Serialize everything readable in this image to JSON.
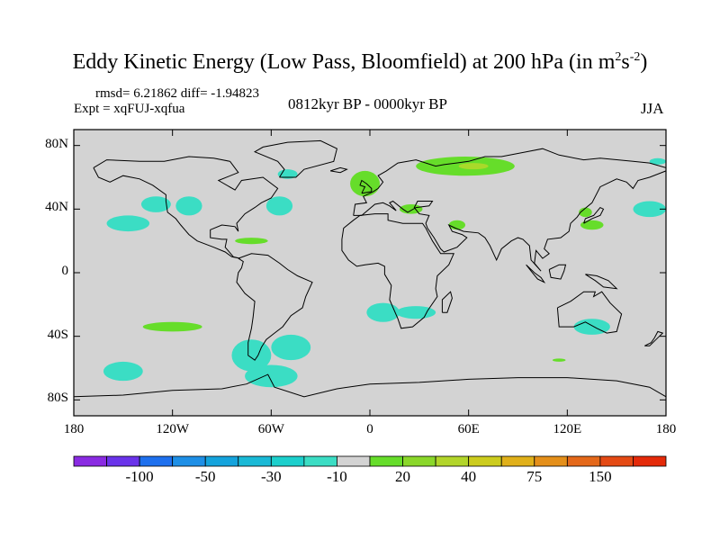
{
  "title": {
    "main": "Eddy Kinetic Energy (Low Pass, Bloomfield) at 200 hPa (in m",
    "sup1": "2",
    "mid": "s",
    "sup2": "-2",
    "end": ")"
  },
  "stats": "rmsd= 6.21862 diff= -1.94823",
  "experiment": "Expt = xqFUJ-xqfua",
  "period": "0812kyr BP - 0000kyr BP",
  "season": "JJA",
  "map": {
    "lon_range": [
      -180,
      180
    ],
    "lat_range": [
      -90,
      90
    ],
    "background_color": "#d3d3d3",
    "y_ticks": [
      {
        "label": "80N",
        "lat": 80
      },
      {
        "label": "40N",
        "lat": 40
      },
      {
        "label": "0",
        "lat": 0
      },
      {
        "label": "40S",
        "lat": -40
      },
      {
        "label": "80S",
        "lat": -80
      }
    ],
    "x_ticks": [
      {
        "label": "180",
        "lon": -180
      },
      {
        "label": "120W",
        "lon": -120
      },
      {
        "label": "60W",
        "lon": -60
      },
      {
        "label": "0",
        "lon": 0
      },
      {
        "label": "60E",
        "lon": 60
      },
      {
        "label": "120E",
        "lon": 120
      },
      {
        "label": "180",
        "lon": 180
      }
    ],
    "anomaly_regions": [
      {
        "name": "north-pacific-east",
        "lon": -147,
        "lat": 31,
        "rlon": 13,
        "rlat": 5,
        "color": "#3bddc4"
      },
      {
        "name": "north-pacific-mid",
        "lon": -130,
        "lat": 43,
        "rlon": 9,
        "rlat": 5,
        "color": "#3bddc4"
      },
      {
        "name": "north-america-west",
        "lon": -110,
        "lat": 42,
        "rlon": 8,
        "rlat": 6,
        "color": "#3bddc4"
      },
      {
        "name": "north-atlantic-west",
        "lon": -55,
        "lat": 42,
        "rlon": 8,
        "rlat": 6,
        "color": "#3bddc4"
      },
      {
        "name": "canada-north",
        "lon": -50,
        "lat": 62,
        "rlon": 6,
        "rlat": 3,
        "color": "#3bddc4"
      },
      {
        "name": "caribbean",
        "lon": -72,
        "lat": 20,
        "rlon": 10,
        "rlat": 2,
        "color": "#66dd2a"
      },
      {
        "name": "europe-west",
        "lon": -3,
        "lat": 56,
        "rlon": 9,
        "rlat": 8,
        "color": "#66dd2a"
      },
      {
        "name": "siberia",
        "lon": 58,
        "lat": 67,
        "rlon": 30,
        "rlat": 6,
        "color": "#66dd2a"
      },
      {
        "name": "siberia-core",
        "lon": 63,
        "lat": 67,
        "rlon": 9,
        "rlat": 2,
        "color": "#a9d92a"
      },
      {
        "name": "mediterranean",
        "lon": 25,
        "lat": 40,
        "rlon": 7,
        "rlat": 3,
        "color": "#66dd2a"
      },
      {
        "name": "middle-east",
        "lon": 53,
        "lat": 30,
        "rlon": 5,
        "rlat": 3,
        "color": "#66dd2a"
      },
      {
        "name": "east-asia",
        "lon": 135,
        "lat": 30,
        "rlon": 7,
        "rlat": 3,
        "color": "#66dd2a"
      },
      {
        "name": "japan",
        "lon": 131,
        "lat": 38,
        "rlon": 4,
        "rlat": 3,
        "color": "#66dd2a"
      },
      {
        "name": "north-pacific-west",
        "lon": 170,
        "lat": 40,
        "rlon": 10,
        "rlat": 5,
        "color": "#3bddc4"
      },
      {
        "name": "bering",
        "lon": 175,
        "lat": 70,
        "rlon": 5,
        "rlat": 2,
        "color": "#3bddc4"
      },
      {
        "name": "south-pacific",
        "lon": -120,
        "lat": -34,
        "rlon": 18,
        "rlat": 3,
        "color": "#66dd2a"
      },
      {
        "name": "south-atlantic",
        "lon": 8,
        "lat": -25,
        "rlon": 10,
        "rlat": 6,
        "color": "#3bddc4"
      },
      {
        "name": "south-atlantic-east",
        "lon": 28,
        "lat": -25,
        "rlon": 12,
        "rlat": 4,
        "color": "#3bddc4"
      },
      {
        "name": "south-america-south",
        "lon": -72,
        "lat": -52,
        "rlon": 12,
        "rlat": 10,
        "color": "#3bddc4"
      },
      {
        "name": "argentina",
        "lon": -48,
        "lat": -47,
        "rlon": 12,
        "rlat": 8,
        "color": "#3bddc4"
      },
      {
        "name": "south-pacific-far",
        "lon": -150,
        "lat": -62,
        "rlon": 12,
        "rlat": 6,
        "color": "#3bddc4"
      },
      {
        "name": "southern-ocean",
        "lon": -60,
        "lat": -65,
        "rlon": 16,
        "rlat": 7,
        "color": "#3bddc4"
      },
      {
        "name": "australia-south",
        "lon": 135,
        "lat": -34,
        "rlon": 11,
        "rlat": 5,
        "color": "#3bddc4"
      },
      {
        "name": "indian-ocean-south",
        "lon": 115,
        "lat": -55,
        "rlon": 4,
        "rlat": 1,
        "color": "#66dd2a"
      }
    ]
  },
  "colorbar": {
    "colors": [
      "#8a2be2",
      "#6a33ea",
      "#1e70ee",
      "#1e8fe6",
      "#14a3dc",
      "#1ab9d6",
      "#1ccfcc",
      "#3bddc4",
      "#d3d3d3",
      "#66dd2a",
      "#8ad72a",
      "#b2d52a",
      "#cccc1e",
      "#e0b01a",
      "#e48f1a",
      "#e4681a",
      "#e44a14",
      "#e42a0a"
    ],
    "labels": [
      {
        "text": "-100",
        "boundary": 2
      },
      {
        "text": "-50",
        "boundary": 4
      },
      {
        "text": "-30",
        "boundary": 6
      },
      {
        "text": "-10",
        "boundary": 8
      },
      {
        "text": "20",
        "boundary": 10
      },
      {
        "text": "40",
        "boundary": 12
      },
      {
        "text": "75",
        "boundary": 14
      },
      {
        "text": "150",
        "boundary": 16
      }
    ]
  }
}
